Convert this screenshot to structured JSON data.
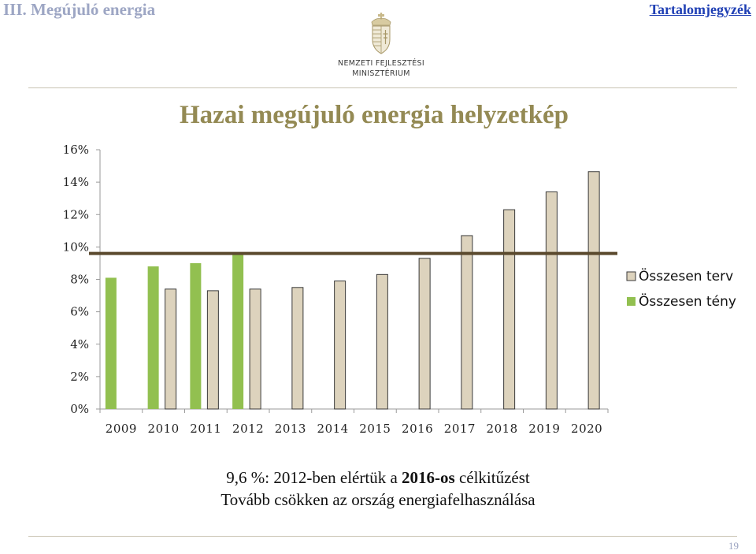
{
  "header": {
    "section_title": "III. Megújuló energia",
    "toc_link": "Tartalomjegyzék"
  },
  "logo": {
    "line1": "NEMZETI FEJLESZTÉSI",
    "line2": "MINISZTÉRIUM"
  },
  "title": "Hazai megújuló energia helyzetkép",
  "caption": {
    "line1_prefix": "9,6 %: 2012-ben elértük a ",
    "line1_bold": "2016-os",
    "line1_suffix": " célkitűzést",
    "line2": "Tovább csökken az ország energiafelhasználása"
  },
  "page_number": "19",
  "chart_data": {
    "type": "bar",
    "categories": [
      "2009",
      "2010",
      "2011",
      "2012",
      "2013",
      "2014",
      "2015",
      "2016",
      "2017",
      "2018",
      "2019",
      "2020"
    ],
    "series": [
      {
        "name": "Összesen terv",
        "color": "#ddd3bd",
        "values": [
          null,
          7.4,
          7.3,
          7.4,
          7.5,
          7.9,
          8.3,
          9.3,
          10.7,
          12.3,
          13.4,
          14.65
        ]
      },
      {
        "name": "Összesen tény",
        "color": "#92c050",
        "values": [
          8.1,
          8.8,
          9.0,
          9.6,
          null,
          null,
          null,
          null,
          null,
          null,
          null,
          null
        ]
      }
    ],
    "yticks": [
      "0%",
      "2%",
      "4%",
      "6%",
      "8%",
      "10%",
      "12%",
      "14%",
      "16%"
    ],
    "ylim": [
      0,
      16
    ],
    "reference_line": 9.6,
    "reference_line_color": "#5b4a2e",
    "grid": false,
    "legend": "right"
  }
}
